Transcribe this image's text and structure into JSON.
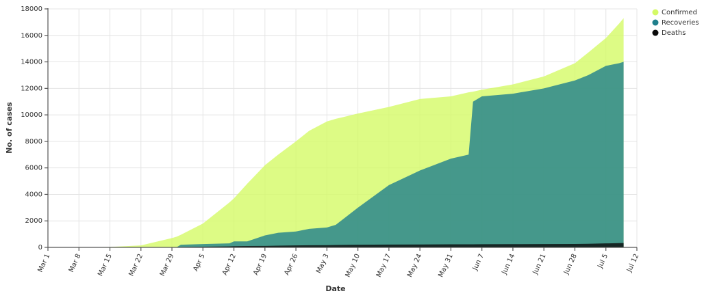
{
  "chart_data": {
    "type": "area",
    "x_label": "Date",
    "y_label": "No. of cases",
    "x": [
      "Mar 1",
      "Mar 15",
      "Mar 22",
      "Mar 29",
      "Mar 30",
      "Mar 31",
      "Apr 5",
      "Apr 11",
      "Apr 12",
      "Apr 15",
      "Apr 19",
      "Apr 22",
      "Apr 26",
      "Apr 29",
      "May 3",
      "May 5",
      "May 10",
      "May 17",
      "May 24",
      "May 31",
      "Jun 4",
      "Jun 5",
      "Jun 7",
      "Jun 14",
      "Jun 21",
      "Jun 28",
      "Jul 1",
      "Jul 5",
      "Jul 8",
      "Jul 9"
    ],
    "series": [
      {
        "name": "Confirmed",
        "color": "#d4fa66",
        "values": [
          0,
          30,
          150,
          700,
          800,
          950,
          1800,
          3400,
          3700,
          4800,
          6200,
          7000,
          8000,
          8800,
          9500,
          9700,
          10100,
          10600,
          11200,
          11400,
          11700,
          11750,
          11900,
          12300,
          12900,
          13900,
          14700,
          15800,
          16900,
          17300
        ]
      },
      {
        "name": "Recoveries",
        "color": "#1f7f8c",
        "values": [
          0,
          0,
          0,
          0,
          0,
          200,
          250,
          300,
          450,
          450,
          900,
          1100,
          1200,
          1400,
          1500,
          1700,
          3000,
          4700,
          5800,
          6700,
          7000,
          11000,
          11400,
          11600,
          12000,
          12600,
          13000,
          13700,
          13900,
          14000
        ]
      },
      {
        "name": "Deaths",
        "color": "#0a0a0a",
        "values": [
          0,
          2,
          5,
          15,
          20,
          25,
          50,
          80,
          90,
          100,
          110,
          130,
          150,
          160,
          170,
          180,
          200,
          210,
          220,
          230,
          235,
          235,
          240,
          245,
          250,
          260,
          270,
          300,
          320,
          330
        ]
      }
    ],
    "xlim": [
      "Mar 1",
      "Jul 12"
    ],
    "xticks": [
      "Mar 1",
      "Mar 8",
      "Mar 15",
      "Mar 22",
      "Mar 29",
      "Apr 5",
      "Apr 12",
      "Apr 19",
      "Apr 26",
      "May 3",
      "May 10",
      "May 17",
      "May 24",
      "May 31",
      "Jun 7",
      "Jun 14",
      "Jun 21",
      "Jun 28",
      "Jul 5",
      "Jul 12"
    ],
    "ylim": [
      0,
      18000
    ],
    "yticks": [
      0,
      2000,
      4000,
      6000,
      8000,
      10000,
      12000,
      14000,
      16000,
      18000
    ],
    "grid": true,
    "legend": "top-right"
  }
}
